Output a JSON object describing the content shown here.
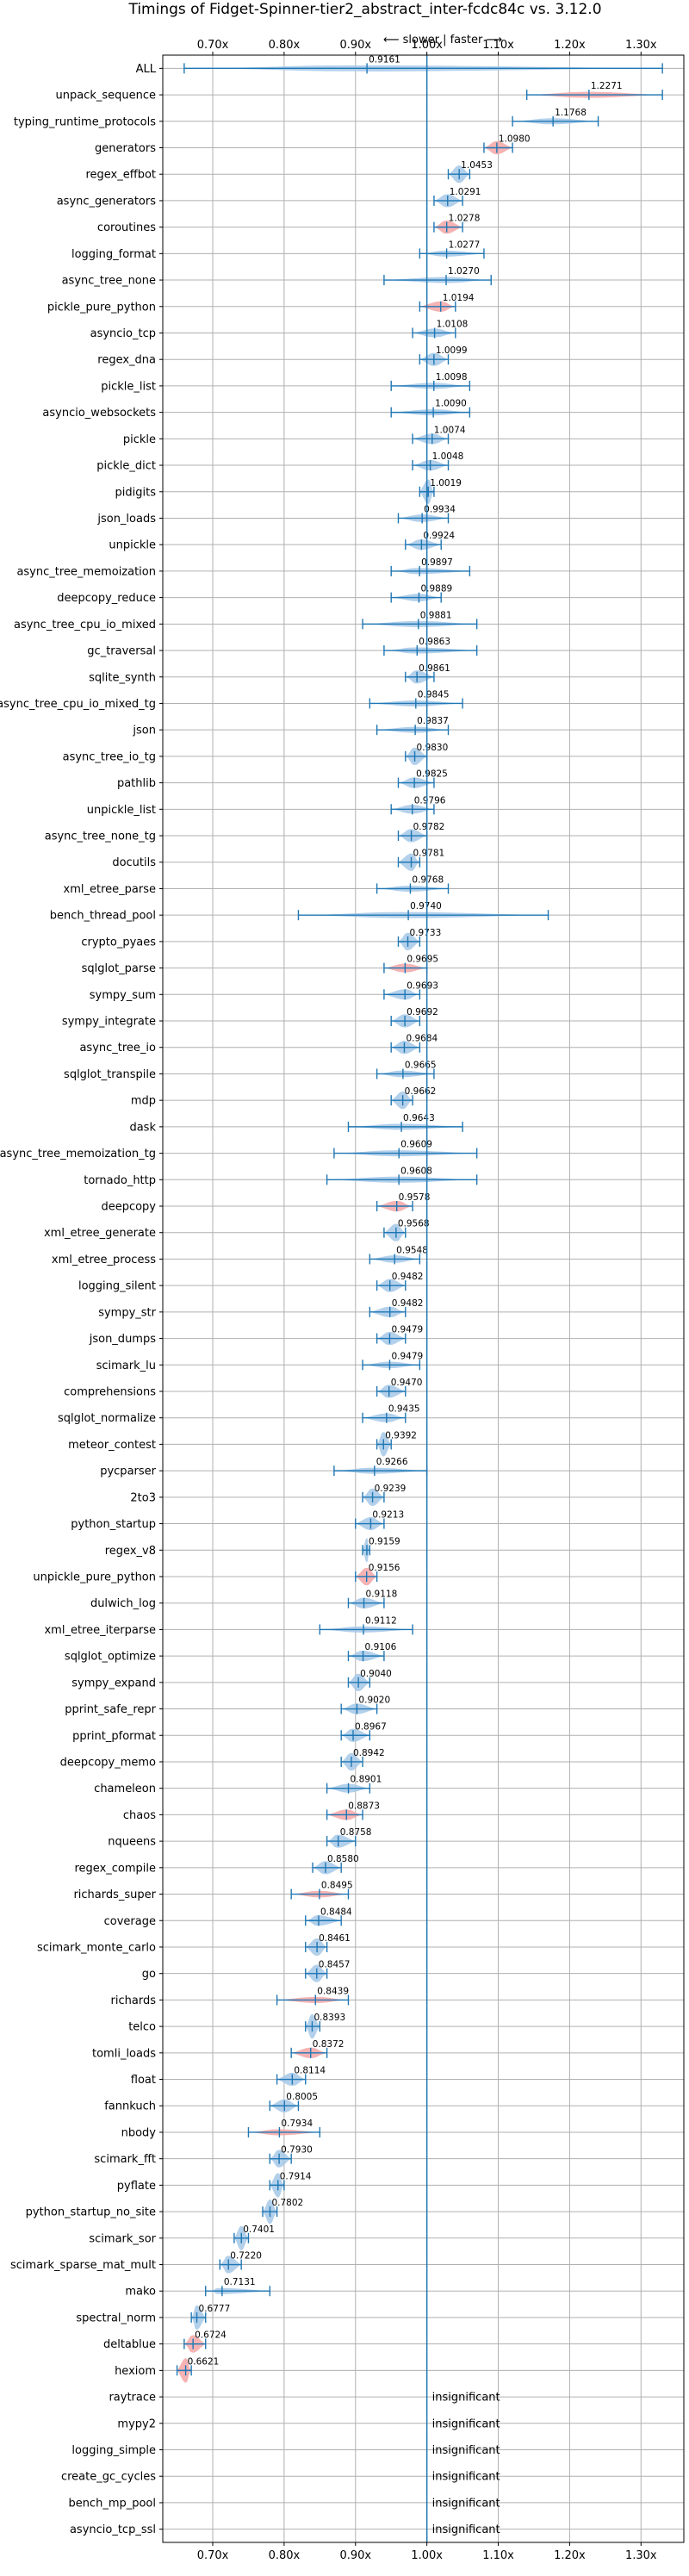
{
  "chart_data": {
    "type": "violin",
    "title": "Timings of Fidget-Spinner-tier2_abstract_inter-fcdc84c vs. 3.12.0",
    "subtitle": "⟵ slower | faster ⟶",
    "x_ticks": [
      "0.70x",
      "0.80x",
      "0.90x",
      "1.00x",
      "1.10x",
      "1.20x",
      "1.30x"
    ],
    "x_tick_values": [
      0.7,
      0.8,
      0.9,
      1.0,
      1.1,
      1.2,
      1.3
    ],
    "xlim": [
      0.63,
      1.36
    ],
    "grid": true,
    "colors": {
      "faster": "#a6c8e8",
      "slower": "#f4a6a6",
      "median": "#1f77b4",
      "reference": "#1f77b4"
    },
    "insignificant_text": "insignificant",
    "benchmarks": [
      {
        "name": "ALL",
        "median": 0.9161,
        "min": 0.66,
        "max": 1.33,
        "status": "faster",
        "label": "0.9161"
      },
      {
        "name": "unpack_sequence",
        "median": 1.2271,
        "min": 1.14,
        "max": 1.33,
        "status": "slower",
        "label": "1.2271"
      },
      {
        "name": "typing_runtime_protocols",
        "median": 1.1768,
        "min": 1.12,
        "max": 1.24,
        "status": "faster",
        "label": "1.1768"
      },
      {
        "name": "generators",
        "median": 1.098,
        "min": 1.08,
        "max": 1.12,
        "status": "slower",
        "label": "1.0980"
      },
      {
        "name": "regex_effbot",
        "median": 1.0453,
        "min": 1.03,
        "max": 1.06,
        "status": "faster",
        "label": "1.0453"
      },
      {
        "name": "async_generators",
        "median": 1.0291,
        "min": 1.01,
        "max": 1.05,
        "status": "faster",
        "label": "1.0291"
      },
      {
        "name": "coroutines",
        "median": 1.0278,
        "min": 1.01,
        "max": 1.05,
        "status": "slower",
        "label": "1.0278"
      },
      {
        "name": "logging_format",
        "median": 1.0277,
        "min": 0.99,
        "max": 1.08,
        "status": "faster",
        "label": "1.0277"
      },
      {
        "name": "async_tree_none",
        "median": 1.027,
        "min": 0.94,
        "max": 1.09,
        "status": "faster",
        "label": "1.0270"
      },
      {
        "name": "pickle_pure_python",
        "median": 1.0194,
        "min": 0.99,
        "max": 1.04,
        "status": "slower",
        "label": "1.0194"
      },
      {
        "name": "asyncio_tcp",
        "median": 1.0108,
        "min": 0.98,
        "max": 1.04,
        "status": "faster",
        "label": "1.0108"
      },
      {
        "name": "regex_dna",
        "median": 1.0099,
        "min": 0.99,
        "max": 1.03,
        "status": "faster",
        "label": "1.0099"
      },
      {
        "name": "pickle_list",
        "median": 1.0098,
        "min": 0.95,
        "max": 1.06,
        "status": "faster",
        "label": "1.0098"
      },
      {
        "name": "asyncio_websockets",
        "median": 1.009,
        "min": 0.95,
        "max": 1.06,
        "status": "faster",
        "label": "1.0090"
      },
      {
        "name": "pickle",
        "median": 1.0074,
        "min": 0.98,
        "max": 1.03,
        "status": "faster",
        "label": "1.0074"
      },
      {
        "name": "pickle_dict",
        "median": 1.0048,
        "min": 0.98,
        "max": 1.03,
        "status": "faster",
        "label": "1.0048"
      },
      {
        "name": "pidigits",
        "median": 1.0019,
        "min": 0.99,
        "max": 1.01,
        "status": "faster",
        "label": "1.0019"
      },
      {
        "name": "json_loads",
        "median": 0.9934,
        "min": 0.96,
        "max": 1.03,
        "status": "faster",
        "label": "0.9934"
      },
      {
        "name": "unpickle",
        "median": 0.9924,
        "min": 0.97,
        "max": 1.02,
        "status": "faster",
        "label": "0.9924"
      },
      {
        "name": "async_tree_memoization",
        "median": 0.9897,
        "min": 0.95,
        "max": 1.06,
        "status": "faster",
        "label": "0.9897"
      },
      {
        "name": "deepcopy_reduce",
        "median": 0.9889,
        "min": 0.95,
        "max": 1.02,
        "status": "faster",
        "label": "0.9889"
      },
      {
        "name": "async_tree_cpu_io_mixed",
        "median": 0.9881,
        "min": 0.91,
        "max": 1.07,
        "status": "faster",
        "label": "0.9881"
      },
      {
        "name": "gc_traversal",
        "median": 0.9863,
        "min": 0.94,
        "max": 1.07,
        "status": "faster",
        "label": "0.9863"
      },
      {
        "name": "sqlite_synth",
        "median": 0.9861,
        "min": 0.97,
        "max": 1.01,
        "status": "faster",
        "label": "0.9861"
      },
      {
        "name": "async_tree_cpu_io_mixed_tg",
        "median": 0.9845,
        "min": 0.92,
        "max": 1.05,
        "status": "faster",
        "label": "0.9845"
      },
      {
        "name": "json",
        "median": 0.9837,
        "min": 0.93,
        "max": 1.03,
        "status": "faster",
        "label": "0.9837"
      },
      {
        "name": "async_tree_io_tg",
        "median": 0.983,
        "min": 0.97,
        "max": 1.0,
        "status": "faster",
        "label": "0.9830"
      },
      {
        "name": "pathlib",
        "median": 0.9825,
        "min": 0.96,
        "max": 1.01,
        "status": "faster",
        "label": "0.9825"
      },
      {
        "name": "unpickle_list",
        "median": 0.9796,
        "min": 0.95,
        "max": 1.01,
        "status": "faster",
        "label": "0.9796"
      },
      {
        "name": "async_tree_none_tg",
        "median": 0.9782,
        "min": 0.96,
        "max": 1.0,
        "status": "faster",
        "label": "0.9782"
      },
      {
        "name": "docutils",
        "median": 0.9781,
        "min": 0.96,
        "max": 0.99,
        "status": "faster",
        "label": "0.9781"
      },
      {
        "name": "xml_etree_parse",
        "median": 0.9768,
        "min": 0.93,
        "max": 1.03,
        "status": "faster",
        "label": "0.9768"
      },
      {
        "name": "bench_thread_pool",
        "median": 0.974,
        "min": 0.82,
        "max": 1.17,
        "status": "faster",
        "label": "0.9740"
      },
      {
        "name": "crypto_pyaes",
        "median": 0.9733,
        "min": 0.96,
        "max": 0.99,
        "status": "faster",
        "label": "0.9733"
      },
      {
        "name": "sqlglot_parse",
        "median": 0.9695,
        "min": 0.94,
        "max": 1.0,
        "status": "slower",
        "label": "0.9695"
      },
      {
        "name": "sympy_sum",
        "median": 0.9693,
        "min": 0.94,
        "max": 0.99,
        "status": "faster",
        "label": "0.9693"
      },
      {
        "name": "sympy_integrate",
        "median": 0.9692,
        "min": 0.95,
        "max": 0.99,
        "status": "faster",
        "label": "0.9692"
      },
      {
        "name": "async_tree_io",
        "median": 0.9684,
        "min": 0.95,
        "max": 0.99,
        "status": "faster",
        "label": "0.9684"
      },
      {
        "name": "sqlglot_transpile",
        "median": 0.9665,
        "min": 0.93,
        "max": 1.01,
        "status": "faster",
        "label": "0.9665"
      },
      {
        "name": "mdp",
        "median": 0.9662,
        "min": 0.95,
        "max": 0.98,
        "status": "faster",
        "label": "0.9662"
      },
      {
        "name": "dask",
        "median": 0.9643,
        "min": 0.89,
        "max": 1.05,
        "status": "faster",
        "label": "0.9643"
      },
      {
        "name": "async_tree_memoization_tg",
        "median": 0.9609,
        "min": 0.87,
        "max": 1.07,
        "status": "faster",
        "label": "0.9609"
      },
      {
        "name": "tornado_http",
        "median": 0.9608,
        "min": 0.86,
        "max": 1.07,
        "status": "faster",
        "label": "0.9608"
      },
      {
        "name": "deepcopy",
        "median": 0.9578,
        "min": 0.93,
        "max": 0.98,
        "status": "slower",
        "label": "0.9578"
      },
      {
        "name": "xml_etree_generate",
        "median": 0.9568,
        "min": 0.94,
        "max": 0.97,
        "status": "faster",
        "label": "0.9568"
      },
      {
        "name": "xml_etree_process",
        "median": 0.9548,
        "min": 0.92,
        "max": 0.99,
        "status": "faster",
        "label": "0.9548"
      },
      {
        "name": "logging_silent",
        "median": 0.9482,
        "min": 0.93,
        "max": 0.97,
        "status": "faster",
        "label": "0.9482"
      },
      {
        "name": "sympy_str",
        "median": 0.9482,
        "min": 0.92,
        "max": 0.97,
        "status": "faster",
        "label": "0.9482"
      },
      {
        "name": "json_dumps",
        "median": 0.9479,
        "min": 0.93,
        "max": 0.97,
        "status": "faster",
        "label": "0.9479"
      },
      {
        "name": "scimark_lu",
        "median": 0.9479,
        "min": 0.91,
        "max": 0.99,
        "status": "faster",
        "label": "0.9479"
      },
      {
        "name": "comprehensions",
        "median": 0.947,
        "min": 0.93,
        "max": 0.97,
        "status": "faster",
        "label": "0.9470"
      },
      {
        "name": "sqlglot_normalize",
        "median": 0.9435,
        "min": 0.91,
        "max": 0.97,
        "status": "faster",
        "label": "0.9435"
      },
      {
        "name": "meteor_contest",
        "median": 0.9392,
        "min": 0.93,
        "max": 0.95,
        "status": "faster",
        "label": "0.9392"
      },
      {
        "name": "pycparser",
        "median": 0.9266,
        "min": 0.87,
        "max": 1.0,
        "status": "faster",
        "label": "0.9266"
      },
      {
        "name": "2to3",
        "median": 0.9239,
        "min": 0.91,
        "max": 0.94,
        "status": "faster",
        "label": "0.9239"
      },
      {
        "name": "python_startup",
        "median": 0.9213,
        "min": 0.9,
        "max": 0.94,
        "status": "faster",
        "label": "0.9213"
      },
      {
        "name": "regex_v8",
        "median": 0.9159,
        "min": 0.91,
        "max": 0.92,
        "status": "faster",
        "label": "0.9159"
      },
      {
        "name": "unpickle_pure_python",
        "median": 0.9156,
        "min": 0.9,
        "max": 0.93,
        "status": "slower",
        "label": "0.9156"
      },
      {
        "name": "dulwich_log",
        "median": 0.9118,
        "min": 0.89,
        "max": 0.94,
        "status": "faster",
        "label": "0.9118"
      },
      {
        "name": "xml_etree_iterparse",
        "median": 0.9112,
        "min": 0.85,
        "max": 0.98,
        "status": "faster",
        "label": "0.9112"
      },
      {
        "name": "sqlglot_optimize",
        "median": 0.9106,
        "min": 0.89,
        "max": 0.94,
        "status": "faster",
        "label": "0.9106"
      },
      {
        "name": "sympy_expand",
        "median": 0.904,
        "min": 0.89,
        "max": 0.92,
        "status": "faster",
        "label": "0.9040"
      },
      {
        "name": "pprint_safe_repr",
        "median": 0.902,
        "min": 0.88,
        "max": 0.93,
        "status": "faster",
        "label": "0.9020"
      },
      {
        "name": "pprint_pformat",
        "median": 0.8967,
        "min": 0.88,
        "max": 0.92,
        "status": "faster",
        "label": "0.8967"
      },
      {
        "name": "deepcopy_memo",
        "median": 0.8942,
        "min": 0.88,
        "max": 0.91,
        "status": "faster",
        "label": "0.8942"
      },
      {
        "name": "chameleon",
        "median": 0.8901,
        "min": 0.86,
        "max": 0.92,
        "status": "faster",
        "label": "0.8901"
      },
      {
        "name": "chaos",
        "median": 0.8873,
        "min": 0.86,
        "max": 0.91,
        "status": "slower",
        "label": "0.8873"
      },
      {
        "name": "nqueens",
        "median": 0.8758,
        "min": 0.86,
        "max": 0.9,
        "status": "faster",
        "label": "0.8758"
      },
      {
        "name": "regex_compile",
        "median": 0.858,
        "min": 0.84,
        "max": 0.88,
        "status": "faster",
        "label": "0.8580"
      },
      {
        "name": "richards_super",
        "median": 0.8495,
        "min": 0.81,
        "max": 0.89,
        "status": "slower",
        "label": "0.8495"
      },
      {
        "name": "coverage",
        "median": 0.8484,
        "min": 0.83,
        "max": 0.88,
        "status": "faster",
        "label": "0.8484"
      },
      {
        "name": "scimark_monte_carlo",
        "median": 0.8461,
        "min": 0.83,
        "max": 0.86,
        "status": "faster",
        "label": "0.8461"
      },
      {
        "name": "go",
        "median": 0.8457,
        "min": 0.83,
        "max": 0.86,
        "status": "faster",
        "label": "0.8457"
      },
      {
        "name": "richards",
        "median": 0.8439,
        "min": 0.79,
        "max": 0.89,
        "status": "slower",
        "label": "0.8439"
      },
      {
        "name": "telco",
        "median": 0.8393,
        "min": 0.83,
        "max": 0.85,
        "status": "faster",
        "label": "0.8393"
      },
      {
        "name": "tomli_loads",
        "median": 0.8372,
        "min": 0.81,
        "max": 0.86,
        "status": "slower",
        "label": "0.8372"
      },
      {
        "name": "float",
        "median": 0.8114,
        "min": 0.79,
        "max": 0.83,
        "status": "faster",
        "label": "0.8114"
      },
      {
        "name": "fannkuch",
        "median": 0.8005,
        "min": 0.78,
        "max": 0.82,
        "status": "faster",
        "label": "0.8005"
      },
      {
        "name": "nbody",
        "median": 0.7934,
        "min": 0.75,
        "max": 0.85,
        "status": "slower",
        "label": "0.7934"
      },
      {
        "name": "scimark_fft",
        "median": 0.793,
        "min": 0.78,
        "max": 0.81,
        "status": "faster",
        "label": "0.7930"
      },
      {
        "name": "pyflate",
        "median": 0.7914,
        "min": 0.78,
        "max": 0.8,
        "status": "faster",
        "label": "0.7914"
      },
      {
        "name": "python_startup_no_site",
        "median": 0.7802,
        "min": 0.77,
        "max": 0.79,
        "status": "faster",
        "label": "0.7802"
      },
      {
        "name": "scimark_sor",
        "median": 0.7401,
        "min": 0.73,
        "max": 0.75,
        "status": "faster",
        "label": "0.7401"
      },
      {
        "name": "scimark_sparse_mat_mult",
        "median": 0.722,
        "min": 0.71,
        "max": 0.74,
        "status": "faster",
        "label": "0.7220"
      },
      {
        "name": "mako",
        "median": 0.7131,
        "min": 0.69,
        "max": 0.78,
        "status": "faster",
        "label": "0.7131"
      },
      {
        "name": "spectral_norm",
        "median": 0.6777,
        "min": 0.67,
        "max": 0.69,
        "status": "faster",
        "label": "0.6777"
      },
      {
        "name": "deltablue",
        "median": 0.6724,
        "min": 0.66,
        "max": 0.69,
        "status": "slower",
        "label": "0.6724"
      },
      {
        "name": "hexiom",
        "median": 0.6621,
        "min": 0.65,
        "max": 0.67,
        "status": "slower",
        "label": "0.6621"
      },
      {
        "name": "raytrace",
        "status": "insignificant"
      },
      {
        "name": "mypy2",
        "status": "insignificant"
      },
      {
        "name": "logging_simple",
        "status": "insignificant"
      },
      {
        "name": "create_gc_cycles",
        "status": "insignificant"
      },
      {
        "name": "bench_mp_pool",
        "status": "insignificant"
      },
      {
        "name": "asyncio_tcp_ssl",
        "status": "insignificant"
      }
    ]
  }
}
